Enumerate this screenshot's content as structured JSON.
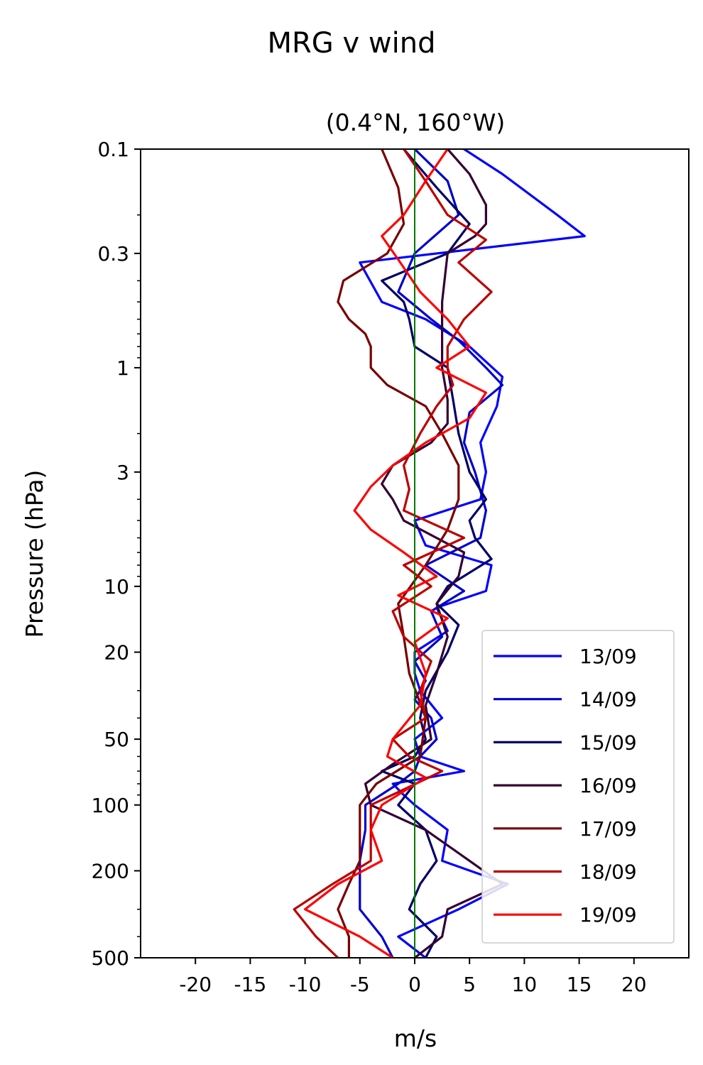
{
  "chart_data": {
    "type": "line",
    "title": "MRG v wind",
    "subtitle": "(0.4°N, 160°W)",
    "xlabel": "m/s",
    "ylabel": "Pressure (hPa)",
    "xlim": [
      -25,
      25
    ],
    "ylim": [
      500,
      0.1
    ],
    "yscale": "log",
    "xticks": [
      {
        "value": -20,
        "label": "-20"
      },
      {
        "value": -15,
        "label": "-15"
      },
      {
        "value": -10,
        "label": "-10"
      },
      {
        "value": -5,
        "label": "-5"
      },
      {
        "value": 0,
        "label": "0"
      },
      {
        "value": 5,
        "label": "5"
      },
      {
        "value": 10,
        "label": "10"
      },
      {
        "value": 15,
        "label": "15"
      },
      {
        "value": 20,
        "label": "20"
      }
    ],
    "yticks": [
      {
        "value": 0.1,
        "label": "0.1"
      },
      {
        "value": 0.3,
        "label": "0.3"
      },
      {
        "value": 1,
        "label": "1"
      },
      {
        "value": 3,
        "label": "3"
      },
      {
        "value": 10,
        "label": "10"
      },
      {
        "value": 20,
        "label": "20"
      },
      {
        "value": 50,
        "label": "50"
      },
      {
        "value": 100,
        "label": "100"
      },
      {
        "value": 200,
        "label": "200"
      },
      {
        "value": 500,
        "label": "500"
      }
    ],
    "reference_line": {
      "x": 0,
      "color": "#007a00"
    },
    "legend_position": "lower-right",
    "series": [
      {
        "name": "13/09",
        "color": "#0000ff",
        "p": [
          0.1,
          0.13,
          0.2,
          0.25,
          0.33,
          0.5,
          0.6,
          0.8,
          1.1,
          1.5,
          2.2,
          3.0,
          4.0,
          5.0,
          6.5,
          8.0,
          10.5,
          12.5,
          16,
          20,
          25,
          30,
          40,
          50,
          60,
          70,
          80,
          90,
          100,
          130,
          180,
          230,
          300,
          400,
          500
        ],
        "u": [
          4.5,
          8,
          13,
          15.5,
          -5,
          -3,
          1,
          5,
          8,
          7.5,
          6,
          6.5,
          6,
          0,
          1,
          7,
          6.5,
          2,
          3,
          0,
          0,
          0.5,
          2.5,
          0,
          0.5,
          4.5,
          -2,
          -1,
          0,
          3,
          2.5,
          8.5,
          4,
          -1.5,
          1
        ]
      },
      {
        "name": "14/09",
        "color": "#0000cc",
        "p": [
          0.1,
          0.14,
          0.2,
          0.3,
          0.45,
          0.6,
          0.75,
          1.0,
          1.2,
          1.6,
          2.2,
          3.0,
          4.5,
          6.0,
          8.0,
          10.5,
          13,
          17,
          22,
          27,
          33,
          40,
          50,
          60,
          70,
          80,
          100,
          130,
          180,
          230,
          300,
          400,
          500
        ],
        "u": [
          0,
          3,
          4,
          0,
          -1.5,
          1.5,
          4,
          6.5,
          8,
          5,
          4.5,
          5.5,
          6.5,
          6,
          1,
          4.5,
          1.5,
          2.5,
          0,
          1,
          0,
          1.5,
          2,
          0.5,
          0,
          -1.5,
          -4.5,
          -4.5,
          -5,
          -5,
          -5,
          -3,
          -2
        ]
      },
      {
        "name": "15/09",
        "color": "#000066",
        "p": [
          0.1,
          0.15,
          0.22,
          0.3,
          0.4,
          0.5,
          0.6,
          0.8,
          1.0,
          1.4,
          2.0,
          3.0,
          4.0,
          5.0,
          6.0,
          7.5,
          10,
          12,
          15,
          20,
          30,
          40,
          50,
          60,
          70,
          80,
          100,
          130,
          180,
          230,
          300,
          400,
          500
        ],
        "u": [
          -1,
          2,
          5,
          3,
          -3,
          -1,
          -0.5,
          0,
          3,
          3.5,
          4,
          5,
          6.5,
          5,
          5.5,
          7,
          3,
          2,
          4,
          3,
          1,
          0.5,
          1,
          0,
          -3,
          0,
          -1.5,
          1,
          2,
          0.5,
          -0.5,
          2,
          1
        ]
      },
      {
        "name": "16/09",
        "color": "#330033",
        "p": [
          0.1,
          0.13,
          0.18,
          0.22,
          0.25,
          0.3,
          0.5,
          0.7,
          1.0,
          1.4,
          1.8,
          2.2,
          2.8,
          3.4,
          4.0,
          5.0,
          7.0,
          9.0,
          12,
          17,
          25,
          35,
          50,
          65,
          80,
          100,
          130,
          180,
          230,
          300,
          400,
          500
        ],
        "u": [
          3,
          5,
          6.5,
          6.5,
          5.5,
          3,
          2.5,
          2.5,
          2.5,
          3,
          3,
          1.5,
          -2,
          -3,
          -2,
          -1,
          4.5,
          4,
          2,
          3,
          2,
          1,
          1.5,
          -2,
          -4.5,
          -4,
          1,
          5,
          8,
          3,
          2.5,
          0
        ]
      },
      {
        "name": "17/09",
        "color": "#770000",
        "p": [
          0.1,
          0.15,
          0.22,
          0.3,
          0.4,
          0.5,
          0.6,
          0.7,
          0.8,
          0.9,
          1.0,
          1.2,
          1.5,
          2.0,
          2.8,
          4.0,
          5.5,
          8.0,
          12,
          17,
          25,
          40,
          60,
          80,
          100,
          130,
          180,
          230,
          300,
          400,
          500
        ],
        "u": [
          -3,
          -1.5,
          -1,
          -2.5,
          -6.5,
          -7,
          -6,
          -4.5,
          -4,
          -4,
          -4,
          -2.5,
          1,
          2.5,
          4,
          4,
          3,
          1,
          -1.5,
          -1,
          -0.5,
          1,
          0.5,
          -3.5,
          -5,
          -5,
          -5,
          -6,
          -7,
          -6,
          -6
        ]
      },
      {
        "name": "18/09",
        "color": "#bb0000",
        "p": [
          0.1,
          0.14,
          0.2,
          0.26,
          0.33,
          0.45,
          0.6,
          0.8,
          1.0,
          1.2,
          1.5,
          2.0,
          2.8,
          3.6,
          4.5,
          6.0,
          8.0,
          10,
          13,
          17,
          22,
          30,
          40,
          50,
          60,
          70,
          85,
          100,
          130,
          180,
          230,
          300,
          400,
          500
        ],
        "u": [
          -1,
          1,
          3,
          6.5,
          4,
          7,
          4.5,
          3,
          3,
          3.5,
          2,
          0.5,
          -1,
          -0.5,
          -1,
          4.5,
          -1,
          1.5,
          -2,
          -1,
          1.5,
          0.5,
          1,
          -2,
          -0.5,
          2.5,
          -1,
          -4,
          -4,
          -4,
          -7.5,
          -11,
          -9,
          -7
        ]
      },
      {
        "name": "19/09",
        "color": "#ff0000",
        "p": [
          0.1,
          0.14,
          0.2,
          0.25,
          0.32,
          0.45,
          0.6,
          0.8,
          1.0,
          1.3,
          1.7,
          2.2,
          2.8,
          3.5,
          4.5,
          5.5,
          7.0,
          9.0,
          11,
          14,
          18,
          25,
          35,
          50,
          60,
          75,
          100,
          130,
          180,
          230,
          300,
          400,
          500
        ],
        "u": [
          3,
          1,
          -1,
          -3,
          -1.5,
          0.5,
          3,
          5,
          2,
          6.5,
          5,
          1,
          -2,
          -4,
          -5.5,
          -4,
          -1,
          2,
          -1.5,
          3,
          0,
          1,
          0.5,
          -2,
          -2.5,
          1,
          -3,
          -4,
          -3,
          -7,
          -10,
          -5,
          -2
        ]
      }
    ]
  }
}
